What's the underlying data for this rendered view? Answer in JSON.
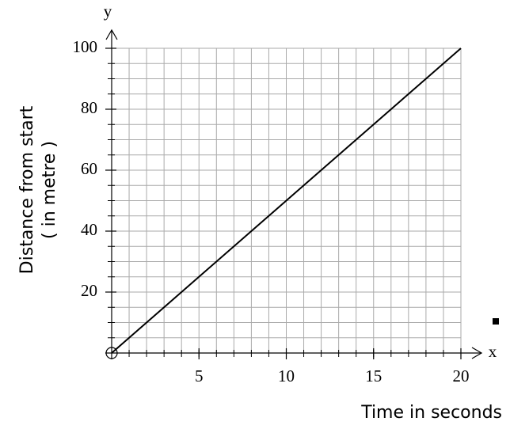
{
  "chart_data": {
    "type": "line",
    "x_label": "Time in seconds",
    "y_label": [
      "Distance from start",
      "( in metre )"
    ],
    "x_axis_letter": "x",
    "y_axis_letter": "y",
    "x": [
      0,
      20
    ],
    "series": [
      {
        "values": [
          0,
          100
        ],
        "color": "#000000"
      }
    ],
    "xlim": [
      0,
      20
    ],
    "ylim": [
      0,
      100
    ],
    "xticks": [
      5,
      10,
      15,
      20
    ],
    "yticks": [
      20,
      40,
      60,
      80,
      100
    ],
    "xminorticks": [
      1,
      2,
      3,
      4,
      5,
      6,
      7,
      8,
      9,
      10,
      11,
      12,
      13,
      14,
      15,
      16,
      17,
      18,
      19,
      20
    ],
    "yminorticks": [
      5,
      10,
      15,
      20,
      25,
      30,
      35,
      40,
      45,
      50,
      55,
      60,
      65,
      70,
      75,
      80,
      85,
      90,
      95,
      100
    ],
    "grid": true
  }
}
